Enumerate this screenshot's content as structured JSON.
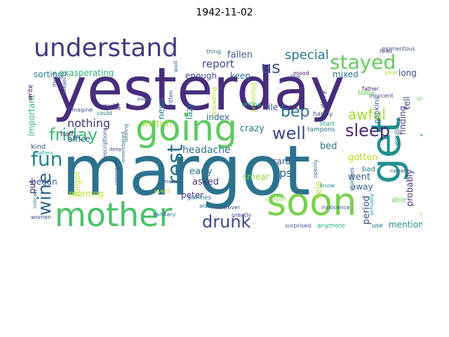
{
  "title": "1942-11-02",
  "words": [
    {
      "text": "yesterday",
      "color": "#472d7b"
    },
    {
      "text": "margot",
      "color": "#2c728e"
    },
    {
      "text": "going",
      "color": "#5ec962"
    },
    {
      "text": "mother",
      "color": "#4ac16d"
    },
    {
      "text": "soon",
      "color": "#7ad151"
    },
    {
      "text": "get",
      "color": "#218f8d"
    },
    {
      "text": "understand",
      "color": "#443a83"
    },
    {
      "text": "stayed",
      "color": "#65cb5e"
    },
    {
      "text": "friday",
      "color": "#3cbb75"
    },
    {
      "text": "fun",
      "color": "#25838e"
    },
    {
      "text": "rest",
      "color": "#2e6f8e"
    },
    {
      "text": "wine",
      "color": "#31688e"
    },
    {
      "text": "drunk",
      "color": "#3e4a89"
    },
    {
      "text": "bep",
      "color": "#2d708e"
    },
    {
      "text": "sleep",
      "color": "#482576"
    },
    {
      "text": "well",
      "color": "#3f4889"
    },
    {
      "text": "evening",
      "color": "#24aa83"
    },
    {
      "text": "us",
      "color": "#3b528b"
    },
    {
      "text": "awful",
      "color": "#a2da37"
    },
    {
      "text": "special",
      "color": "#2a778e"
    },
    {
      "text": "nothing",
      "color": "#46337e"
    },
    {
      "text": "report",
      "color": "#3e4c8a"
    },
    {
      "text": "fallen",
      "color": "#355f8d"
    },
    {
      "text": "headache",
      "color": "#2c738e"
    },
    {
      "text": "office",
      "color": "#3b528b"
    },
    {
      "text": "early",
      "color": "#2a788e"
    },
    {
      "text": "forgot",
      "color": "#b8de29"
    },
    {
      "text": "morning",
      "color": "#bddf26"
    },
    {
      "text": "asked",
      "color": "#453781"
    },
    {
      "text": "peter",
      "color": "#453882"
    },
    {
      "text": "ps",
      "color": "#33638d"
    },
    {
      "text": "smear",
      "color": "#8bd646"
    },
    {
      "text": "went",
      "color": "#355e8d"
    },
    {
      "text": "bed",
      "color": "#2d718e"
    },
    {
      "text": "card",
      "color": "#3a548c"
    },
    {
      "text": "crazy",
      "color": "#2b748e"
    },
    {
      "text": "file",
      "color": "#3c4f8a"
    },
    {
      "text": "index",
      "color": "#31678e"
    },
    {
      "text": "mention",
      "color": "#238a8d"
    },
    {
      "text": "period",
      "color": "#3e4989"
    },
    {
      "text": "gotten",
      "color": "#b5de2b"
    },
    {
      "text": "finding",
      "color": "#433e85"
    },
    {
      "text": "probably",
      "color": "#46307e"
    },
    {
      "text": "tell",
      "color": "#3e4989"
    },
    {
      "text": "long",
      "color": "#3d4d8a"
    },
    {
      "text": "mixed",
      "color": "#2b758e"
    },
    {
      "text": "sorting",
      "color": "#25838e"
    },
    {
      "text": "exasperating",
      "color": "#2db27d"
    },
    {
      "text": "enough",
      "color": "#3e4989"
    },
    {
      "text": "keep",
      "color": "#31678e"
    },
    {
      "text": "nuts",
      "color": "#433e85"
    },
    {
      "text": "whitish",
      "color": "#a5db36"
    },
    {
      "text": "important",
      "color": "#37b878"
    },
    {
      "text": "began",
      "color": "#39558c"
    },
    {
      "text": "put",
      "color": "#481467"
    },
    {
      "text": "lazy",
      "color": "#27808e"
    },
    {
      "text": "news",
      "color": "#2a768e"
    },
    {
      "text": "away",
      "color": "#33628d"
    },
    {
      "text": "help",
      "color": "#bddf26"
    },
    {
      "text": "bad",
      "color": "#287c8e"
    },
    {
      "text": "napkins",
      "color": "#39558c"
    },
    {
      "text": "diary",
      "color": "#40498e"
    },
    {
      "text": "hardly",
      "color": "#3b528b"
    },
    {
      "text": "tampons",
      "color": "#30698e"
    },
    {
      "text": "start",
      "color": "#20a486"
    },
    {
      "text": "used",
      "color": "#6ece58"
    },
    {
      "text": "would",
      "color": "#26828e"
    },
    {
      "text": "year",
      "color": "#b5de2b"
    },
    {
      "text": "half",
      "color": "#482878"
    },
    {
      "text": "kind",
      "color": "#38588c"
    },
    {
      "text": "baby",
      "color": "#6ece58"
    },
    {
      "text": "father",
      "color": "#481f70"
    },
    {
      "text": "momentous",
      "color": "#3d4d8a"
    },
    {
      "text": "thing",
      "color": "#2f6b8e"
    },
    {
      "text": "panties",
      "color": "#2a788e"
    },
    {
      "text": "sanitary",
      "color": "#2e6e8e"
    },
    {
      "text": "event",
      "color": "#b8de29"
    },
    {
      "text": "mama",
      "color": "#3b528b"
    },
    {
      "text": "greatly",
      "color": "#453781"
    },
    {
      "text": "anymore",
      "color": "#26ad81"
    },
    {
      "text": "use",
      "color": "#2c738e"
    },
    {
      "text": "able",
      "color": "#6ece58"
    },
    {
      "text": "nicer",
      "color": "#8bd646"
    },
    {
      "text": "surprised",
      "color": "#3b528b"
    },
    {
      "text": "actually",
      "color": "#1fa088"
    },
    {
      "text": "know",
      "color": "#21918c"
    },
    {
      "text": "openly",
      "color": "#2c728e"
    },
    {
      "text": "innocence",
      "color": "#3b528b"
    },
    {
      "text": "changes",
      "color": "#33638d"
    },
    {
      "text": "never",
      "color": "#355f8d"
    },
    {
      "text": "innocent",
      "color": "#3e4a89"
    },
    {
      "text": "embarrasses",
      "color": "#25ab82"
    },
    {
      "text": "mood",
      "color": "#471063"
    },
    {
      "text": "read",
      "color": "#48186a"
    },
    {
      "text": "written",
      "color": "#3b528b"
    },
    {
      "text": "predicted",
      "color": "#b5de2b"
    },
    {
      "text": "writing",
      "color": "#2db27d"
    },
    {
      "text": "rereading",
      "color": "#b8de29"
    },
    {
      "text": "wait",
      "color": "#2c728e"
    },
    {
      "text": "like",
      "color": "#3e4a89"
    },
    {
      "text": "much",
      "color": "#39558c"
    },
    {
      "text": "subjects",
      "color": "#3e4a89"
    },
    {
      "text": "write",
      "color": "#440154"
    },
    {
      "text": "imagine",
      "color": "#3b528b"
    },
    {
      "text": "could",
      "color": "#2a788e"
    },
    {
      "text": "matters",
      "color": "#22a884"
    },
    {
      "text": "deep",
      "color": "#3e4a89"
    },
    {
      "text": "dealing",
      "color": "#2e6e8e"
    },
    {
      "text": "pages",
      "color": "#38588c"
    },
    {
      "text": "descriptions",
      "color": "#39558c"
    },
    {
      "text": "comments",
      "color": "#3b528b"
    },
    {
      "text": "remembered",
      "color": "#2c738e"
    },
    {
      "text": "however",
      "color": "#3b528b"
    },
    {
      "text": "also",
      "color": "#25838e"
    },
    {
      "text": "childish",
      "color": "#8bd646"
    },
    {
      "text": "women",
      "color": "#3b528b"
    },
    {
      "text": "indicate",
      "color": "#2a788e"
    }
  ]
}
